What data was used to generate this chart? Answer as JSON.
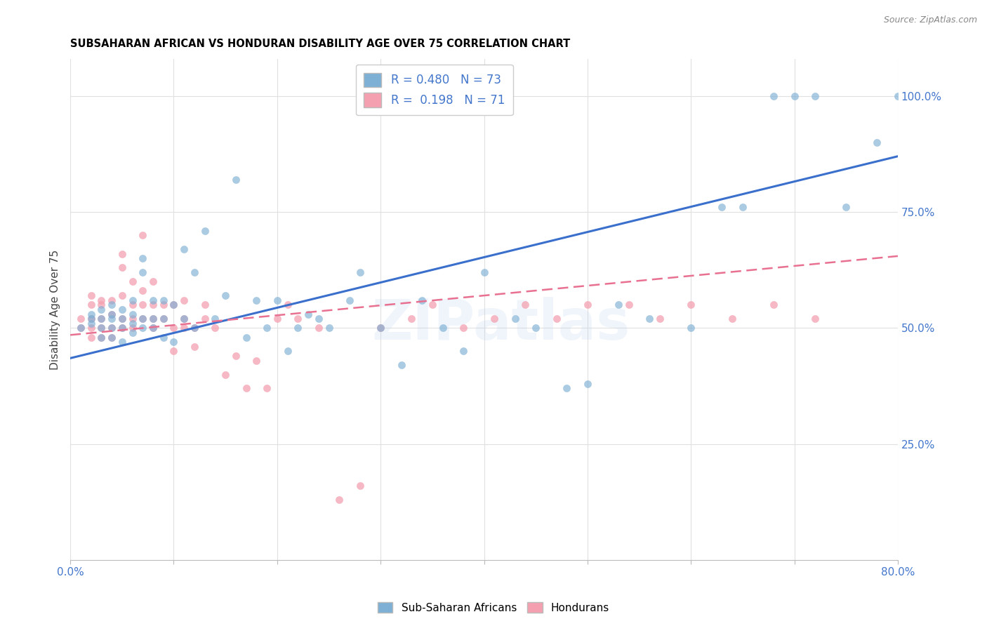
{
  "title": "SUBSAHARAN AFRICAN VS HONDURAN DISABILITY AGE OVER 75 CORRELATION CHART",
  "source": "Source: ZipAtlas.com",
  "ylabel": "Disability Age Over 75",
  "xlim": [
    0.0,
    0.8
  ],
  "ylim": [
    0.0,
    1.08
  ],
  "yticks_right": [
    0.25,
    0.5,
    0.75,
    1.0
  ],
  "ytick_right_labels": [
    "25.0%",
    "50.0%",
    "75.0%",
    "100.0%"
  ],
  "blue_color": "#7EB0D5",
  "pink_color": "#F4A0B0",
  "blue_line_color": "#3A6FCC",
  "pink_line_color": "#E87090",
  "legend_R_blue": "0.480",
  "legend_N_blue": "73",
  "legend_R_pink": "0.198",
  "legend_N_pink": "71",
  "watermark": "ZIPatlas",
  "label_blue": "Sub-Saharan Africans",
  "label_pink": "Hondurans",
  "axis_label_color": "#4477CC",
  "grid_color": "#E0E0E0",
  "blue_scatter_x": [
    0.01,
    0.02,
    0.02,
    0.02,
    0.03,
    0.03,
    0.03,
    0.03,
    0.04,
    0.04,
    0.04,
    0.04,
    0.04,
    0.05,
    0.05,
    0.05,
    0.05,
    0.06,
    0.06,
    0.06,
    0.06,
    0.07,
    0.07,
    0.07,
    0.07,
    0.08,
    0.08,
    0.08,
    0.09,
    0.09,
    0.09,
    0.1,
    0.1,
    0.11,
    0.11,
    0.12,
    0.12,
    0.13,
    0.14,
    0.15,
    0.16,
    0.17,
    0.18,
    0.19,
    0.2,
    0.21,
    0.22,
    0.23,
    0.24,
    0.25,
    0.27,
    0.28,
    0.3,
    0.32,
    0.34,
    0.36,
    0.38,
    0.4,
    0.43,
    0.45,
    0.48,
    0.5,
    0.53,
    0.56,
    0.6,
    0.63,
    0.65,
    0.68,
    0.7,
    0.72,
    0.75,
    0.78,
    0.8
  ],
  "blue_scatter_y": [
    0.5,
    0.51,
    0.52,
    0.53,
    0.48,
    0.5,
    0.52,
    0.54,
    0.48,
    0.5,
    0.52,
    0.53,
    0.55,
    0.47,
    0.5,
    0.52,
    0.54,
    0.49,
    0.51,
    0.53,
    0.56,
    0.5,
    0.52,
    0.62,
    0.65,
    0.5,
    0.52,
    0.56,
    0.48,
    0.52,
    0.56,
    0.47,
    0.55,
    0.52,
    0.67,
    0.5,
    0.62,
    0.71,
    0.52,
    0.57,
    0.82,
    0.48,
    0.56,
    0.5,
    0.56,
    0.45,
    0.5,
    0.53,
    0.52,
    0.5,
    0.56,
    0.62,
    0.5,
    0.42,
    0.56,
    0.5,
    0.45,
    0.62,
    0.52,
    0.5,
    0.37,
    0.38,
    0.55,
    0.52,
    0.5,
    0.76,
    0.76,
    1.0,
    1.0,
    1.0,
    0.76,
    0.9,
    1.0
  ],
  "pink_scatter_x": [
    0.01,
    0.01,
    0.02,
    0.02,
    0.02,
    0.02,
    0.02,
    0.03,
    0.03,
    0.03,
    0.03,
    0.03,
    0.04,
    0.04,
    0.04,
    0.04,
    0.05,
    0.05,
    0.05,
    0.05,
    0.05,
    0.06,
    0.06,
    0.06,
    0.06,
    0.07,
    0.07,
    0.07,
    0.07,
    0.08,
    0.08,
    0.08,
    0.08,
    0.09,
    0.09,
    0.1,
    0.1,
    0.1,
    0.11,
    0.11,
    0.11,
    0.12,
    0.12,
    0.13,
    0.13,
    0.14,
    0.15,
    0.16,
    0.17,
    0.18,
    0.19,
    0.2,
    0.21,
    0.22,
    0.24,
    0.26,
    0.28,
    0.3,
    0.33,
    0.35,
    0.38,
    0.41,
    0.44,
    0.47,
    0.5,
    0.54,
    0.57,
    0.6,
    0.64,
    0.68,
    0.72
  ],
  "pink_scatter_y": [
    0.5,
    0.52,
    0.48,
    0.5,
    0.52,
    0.55,
    0.57,
    0.48,
    0.5,
    0.52,
    0.55,
    0.56,
    0.48,
    0.5,
    0.53,
    0.56,
    0.5,
    0.52,
    0.57,
    0.63,
    0.66,
    0.5,
    0.52,
    0.55,
    0.6,
    0.52,
    0.55,
    0.58,
    0.7,
    0.5,
    0.52,
    0.55,
    0.6,
    0.52,
    0.55,
    0.45,
    0.5,
    0.55,
    0.5,
    0.52,
    0.56,
    0.46,
    0.5,
    0.52,
    0.55,
    0.5,
    0.4,
    0.44,
    0.37,
    0.43,
    0.37,
    0.52,
    0.55,
    0.52,
    0.5,
    0.13,
    0.16,
    0.5,
    0.52,
    0.55,
    0.5,
    0.52,
    0.55,
    0.52,
    0.55,
    0.55,
    0.52,
    0.55,
    0.52,
    0.55,
    0.52
  ],
  "blue_trend_x": [
    0.0,
    0.8
  ],
  "blue_trend_y": [
    0.435,
    0.87
  ],
  "pink_trend_x": [
    0.0,
    0.8
  ],
  "pink_trend_y": [
    0.485,
    0.655
  ]
}
